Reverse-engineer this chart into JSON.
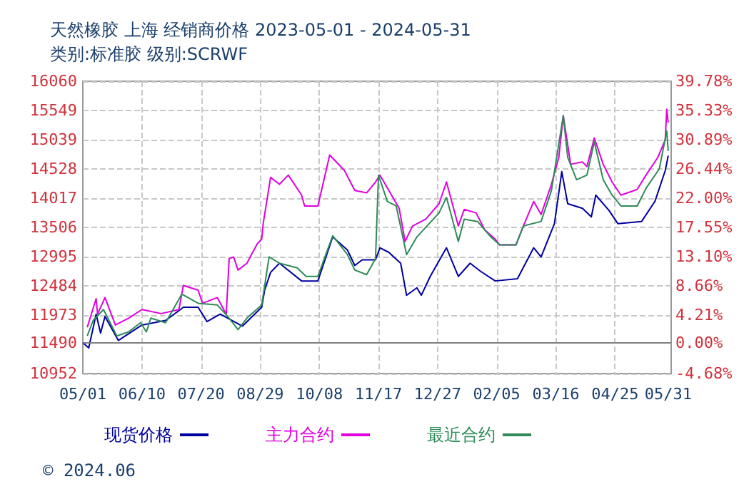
{
  "chart_data": {
    "type": "line",
    "title": "天然橡胶 上海 经销商价格 2023-05-01 - 2024-05-31",
    "subtitle": "类别:标准胶 级别:SCRWF",
    "annotations": [
      "© 2024.06"
    ],
    "xlim": [
      "2023-05-01",
      "2024-06-02"
    ],
    "xticks": [
      {
        "value": "2023-05-01",
        "label": "05/01"
      },
      {
        "value": "2023-06-10",
        "label": "06/10"
      },
      {
        "value": "2023-07-20",
        "label": "07/20"
      },
      {
        "value": "2023-08-29",
        "label": "08/29"
      },
      {
        "value": "2023-10-08",
        "label": "10/08"
      },
      {
        "value": "2023-11-17",
        "label": "11/17"
      },
      {
        "value": "2023-12-27",
        "label": "12/27"
      },
      {
        "value": "2024-02-05",
        "label": "02/05"
      },
      {
        "value": "2024-03-16",
        "label": "03/16"
      },
      {
        "value": "2024-04-25",
        "label": "04/25"
      },
      {
        "value": "2024-05-31",
        "label": "05/31"
      }
    ],
    "ylim": [
      10952,
      16060
    ],
    "yticks": [
      10952,
      11490,
      11973,
      12484,
      12995,
      13506,
      14017,
      14528,
      15039,
      15549,
      16060
    ],
    "y2lim": [
      -4.68,
      39.78
    ],
    "y2ticks": [
      {
        "value": -4.68,
        "label": "-4.68%"
      },
      {
        "value": 0,
        "label": "0.00%"
      },
      {
        "value": 4.21,
        "label": "4.21%"
      },
      {
        "value": 8.66,
        "label": "8.66%"
      },
      {
        "value": 13.1,
        "label": "13.10%"
      },
      {
        "value": 17.55,
        "label": "17.55%"
      },
      {
        "value": 22.0,
        "label": "22.00%"
      },
      {
        "value": 26.44,
        "label": "26.44%"
      },
      {
        "value": 30.89,
        "label": "30.89%"
      },
      {
        "value": 35.33,
        "label": "35.33%"
      },
      {
        "value": 39.78,
        "label": "39.78%"
      }
    ],
    "ref_lines": [
      {
        "axis": "y",
        "value": 11490,
        "color": "#808080"
      }
    ],
    "grid": true,
    "legend": "bottom",
    "marker": "none",
    "line_style": "solid",
    "series": [
      {
        "name": "现货价格",
        "color": "#0000a0",
        "x": [
          "2023-05-01",
          "2023-05-05",
          "2023-05-10",
          "2023-05-13",
          "2023-05-16",
          "2023-05-25",
          "2023-06-10",
          "2023-06-26",
          "2023-07-08",
          "2023-07-18",
          "2023-07-24",
          "2023-08-02",
          "2023-08-17",
          "2023-08-30",
          "2023-09-01",
          "2023-09-05",
          "2023-09-11",
          "2023-09-26",
          "2023-10-07",
          "2023-10-17",
          "2023-10-27",
          "2023-11-01",
          "2023-11-06",
          "2023-11-15",
          "2023-11-18",
          "2023-11-24",
          "2023-12-02",
          "2023-12-06",
          "2023-12-13",
          "2023-12-16",
          "2023-12-22",
          "2024-01-02",
          "2024-01-10",
          "2024-01-18",
          "2024-01-25",
          "2024-02-04",
          "2024-02-19",
          "2024-03-01",
          "2024-03-06",
          "2024-03-15",
          "2024-03-20",
          "2024-03-24",
          "2024-04-03",
          "2024-04-09",
          "2024-04-12",
          "2024-04-21",
          "2024-04-27",
          "2024-05-13",
          "2024-05-22",
          "2024-05-29",
          "2024-05-31"
        ],
        "values": [
          11490,
          11400,
          11990,
          11660,
          11950,
          11530,
          11800,
          11880,
          12110,
          12110,
          11860,
          11990,
          11780,
          12110,
          12410,
          12720,
          12880,
          12570,
          12570,
          13340,
          13110,
          12840,
          12940,
          12940,
          13150,
          13070,
          12880,
          12320,
          12450,
          12320,
          12650,
          13150,
          12650,
          12880,
          12740,
          12570,
          12610,
          13150,
          12990,
          13570,
          14480,
          13920,
          13840,
          13690,
          14070,
          13800,
          13570,
          13610,
          13960,
          14500,
          14760
        ]
      },
      {
        "name": "主力合约",
        "color": "#e000e0",
        "x": [
          "2023-05-04",
          "2023-05-10",
          "2023-05-11",
          "2023-05-16",
          "2023-05-23",
          "2023-06-01",
          "2023-06-10",
          "2023-06-23",
          "2023-07-05",
          "2023-07-08",
          "2023-07-18",
          "2023-07-21",
          "2023-07-31",
          "2023-08-06",
          "2023-08-08",
          "2023-08-11",
          "2023-08-14",
          "2023-08-20",
          "2023-08-27",
          "2023-08-30",
          "2023-08-31",
          "2023-09-05",
          "2023-09-11",
          "2023-09-17",
          "2023-09-26",
          "2023-09-28",
          "2023-10-07",
          "2023-10-15",
          "2023-10-25",
          "2023-11-01",
          "2023-11-09",
          "2023-11-15",
          "2023-11-18",
          "2023-12-01",
          "2023-12-05",
          "2023-12-10",
          "2023-12-19",
          "2023-12-28",
          "2024-01-02",
          "2024-01-10",
          "2024-01-14",
          "2024-01-22",
          "2024-01-28",
          "2024-02-04",
          "2024-02-07",
          "2024-02-18",
          "2024-02-23",
          "2024-03-01",
          "2024-03-06",
          "2024-03-13",
          "2024-03-18",
          "2024-03-21",
          "2024-03-26",
          "2024-04-03",
          "2024-04-06",
          "2024-04-11",
          "2024-04-17",
          "2024-04-23",
          "2024-04-29",
          "2024-05-10",
          "2024-05-16",
          "2024-05-24",
          "2024-05-29",
          "2024-05-30",
          "2024-05-31"
        ],
        "values": [
          11760,
          12260,
          11990,
          12280,
          11800,
          11920,
          12070,
          12000,
          12070,
          12490,
          12410,
          12180,
          12280,
          11990,
          12960,
          12990,
          12760,
          12880,
          13220,
          13300,
          13570,
          14380,
          14260,
          14420,
          14070,
          13880,
          13880,
          14770,
          14500,
          14150,
          14110,
          14300,
          14420,
          13840,
          13260,
          13530,
          13650,
          13920,
          14300,
          13530,
          13820,
          13760,
          13460,
          13300,
          13200,
          13200,
          13530,
          13960,
          13730,
          14260,
          14730,
          15460,
          14610,
          14650,
          14570,
          15070,
          14610,
          14300,
          14070,
          14170,
          14420,
          14730,
          15040,
          15570,
          15340
        ]
      },
      {
        "name": "最近合约",
        "color": "#2e8b57",
        "x": [
          "2023-05-04",
          "2023-05-08",
          "2023-05-15",
          "2023-05-24",
          "2023-06-01",
          "2023-06-09",
          "2023-06-13",
          "2023-06-16",
          "2023-06-26",
          "2023-07-07",
          "2023-07-18",
          "2023-07-31",
          "2023-08-07",
          "2023-08-14",
          "2023-08-20",
          "2023-08-30",
          "2023-09-04",
          "2023-09-11",
          "2023-09-23",
          "2023-09-29",
          "2023-10-07",
          "2023-10-17",
          "2023-10-27",
          "2023-11-01",
          "2023-11-09",
          "2023-11-15",
          "2023-11-17",
          "2023-11-23",
          "2023-11-29",
          "2023-12-06",
          "2023-12-13",
          "2023-12-28",
          "2024-01-02",
          "2024-01-10",
          "2024-01-14",
          "2024-01-23",
          "2024-02-01",
          "2024-02-07",
          "2024-02-18",
          "2024-02-23",
          "2024-03-06",
          "2024-03-13",
          "2024-03-21",
          "2024-03-24",
          "2024-03-30",
          "2024-04-06",
          "2024-04-11",
          "2024-04-17",
          "2024-04-23",
          "2024-04-29",
          "2024-05-10",
          "2024-05-16",
          "2024-05-25",
          "2024-05-30",
          "2024-05-31"
        ],
        "values": [
          11610,
          11880,
          12070,
          11610,
          11680,
          11840,
          11680,
          11920,
          11840,
          12340,
          12180,
          12150,
          11950,
          11720,
          11920,
          12150,
          12990,
          12880,
          12800,
          12650,
          12650,
          13360,
          13030,
          12760,
          12680,
          12960,
          14420,
          13960,
          13880,
          13030,
          13340,
          13760,
          14030,
          13260,
          13650,
          13610,
          13340,
          13200,
          13200,
          13530,
          13610,
          14150,
          15460,
          14730,
          14340,
          14420,
          15000,
          14340,
          14070,
          13880,
          13880,
          14190,
          14530,
          15190,
          14840
        ]
      }
    ]
  }
}
